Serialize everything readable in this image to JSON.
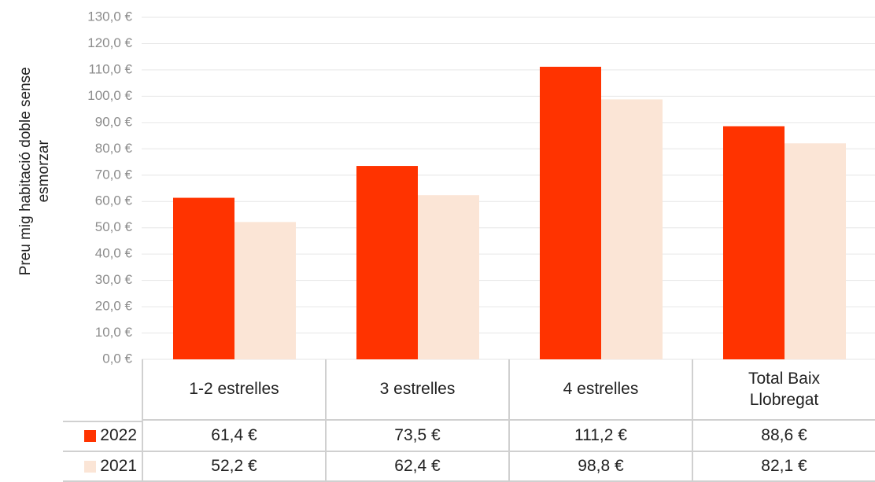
{
  "chart_data": {
    "type": "bar",
    "y_axis_label": "Preu mig habitació doble sense esmorzar",
    "categories": [
      "1-2 estrelles",
      "3 estrelles",
      "4 estrelles",
      "Total Baix Llobregat"
    ],
    "series": [
      {
        "name": "2022",
        "color": "#ff3300",
        "values": [
          61.4,
          73.5,
          111.2,
          88.6
        ],
        "value_labels": [
          "61,4 €",
          "73,5 €",
          "111,2 €",
          "88,6 €"
        ]
      },
      {
        "name": "2021",
        "color": "#fbe5d6",
        "values": [
          52.2,
          62.4,
          98.8,
          82.1
        ],
        "value_labels": [
          "52,2 €",
          "62,4 €",
          "98,8 €",
          "82,1 €"
        ]
      }
    ],
    "ylim": [
      0,
      130
    ],
    "yticks": [
      {
        "value": 0,
        "label": "0,0 €"
      },
      {
        "value": 10,
        "label": "10,0 €"
      },
      {
        "value": 20,
        "label": "20,0 €"
      },
      {
        "value": 30,
        "label": "30,0 €"
      },
      {
        "value": 40,
        "label": "40,0 €"
      },
      {
        "value": 50,
        "label": "50,0 €"
      },
      {
        "value": 60,
        "label": "60,0 €"
      },
      {
        "value": 70,
        "label": "70,0 €"
      },
      {
        "value": 80,
        "label": "80,0 €"
      },
      {
        "value": 90,
        "label": "90,0 €"
      },
      {
        "value": 100,
        "label": "100,0 €"
      },
      {
        "value": 110,
        "label": "110,0 €"
      },
      {
        "value": 120,
        "label": "120,0 €"
      },
      {
        "value": 130,
        "label": "130,0 €"
      }
    ],
    "grid": true
  }
}
